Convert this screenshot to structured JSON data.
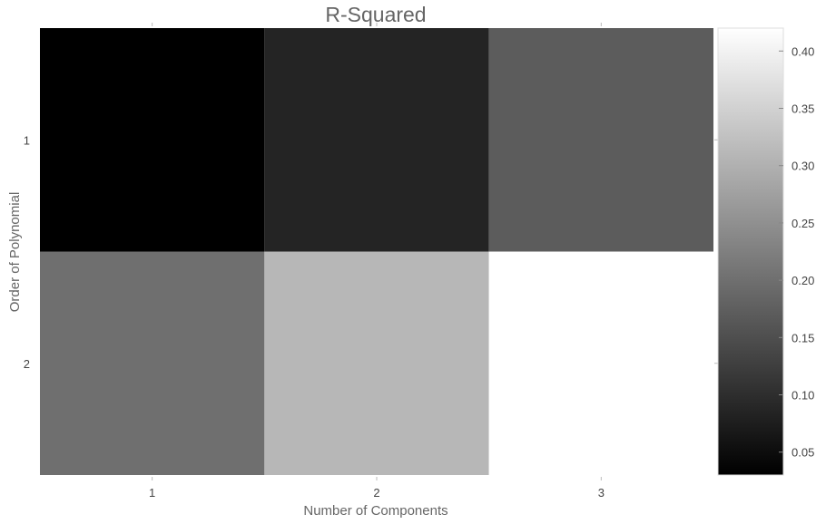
{
  "chart_data": {
    "type": "heatmap",
    "title": "R-Squared",
    "xlabel": "Number of Components",
    "ylabel": "Order of Polynomial",
    "x_categories": [
      "1",
      "2",
      "3"
    ],
    "y_categories": [
      "1",
      "2"
    ],
    "values": [
      [
        0.03,
        0.085,
        0.17
      ],
      [
        0.2,
        0.31,
        0.42
      ]
    ],
    "colorscale": {
      "min_color": "#000000",
      "max_color": "#ffffff",
      "range": [
        0.03,
        0.42
      ]
    },
    "colorbar_ticks": [
      "0.05",
      "0.10",
      "0.15",
      "0.20",
      "0.25",
      "0.30",
      "0.35",
      "0.40"
    ],
    "grid": false,
    "legend": "colorbar-right"
  }
}
